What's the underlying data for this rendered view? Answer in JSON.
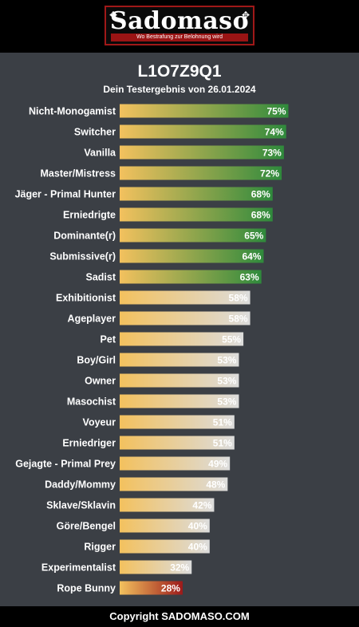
{
  "logo": {
    "wordmark": "Sadomaso",
    "tagline": "Wo Bestrafung zur Belohnung wird"
  },
  "colors": {
    "bar_start": "#f3c15e",
    "top_tier_end": "#2f8a3c",
    "mid_tier_end": "#dcdcdc",
    "low_tier_end": "#9c1a1a"
  },
  "chart_data": {
    "type": "bar",
    "orientation": "horizontal",
    "title": "L1O7Z9Q1",
    "subtitle": "Dein Testergebnis von 26.01.2024",
    "xlim": [
      0,
      100
    ],
    "grid": false,
    "legend": "none",
    "categories": [
      "Nicht-Monogamist",
      "Switcher",
      "Vanilla",
      "Master/Mistress",
      "Jäger - Primal Hunter",
      "Erniedrigte",
      "Dominante(r)",
      "Submissive(r)",
      "Sadist",
      "Exhibitionist",
      "Ageplayer",
      "Pet",
      "Boy/Girl",
      "Owner",
      "Masochist",
      "Voyeur",
      "Erniedriger",
      "Gejagte - Primal Prey",
      "Daddy/Mommy",
      "Sklave/Sklavin",
      "Göre/Bengel",
      "Rigger",
      "Experimentalist",
      "Rope Bunny"
    ],
    "values": [
      75,
      74,
      73,
      72,
      68,
      68,
      65,
      64,
      63,
      58,
      58,
      55,
      53,
      53,
      53,
      51,
      51,
      49,
      48,
      42,
      40,
      40,
      32,
      28
    ],
    "labels": [
      "75%",
      "74%",
      "73%",
      "72%",
      "68%",
      "68%",
      "65%",
      "64%",
      "63%",
      "58%",
      "58%",
      "55%",
      "53%",
      "53%",
      "53%",
      "51%",
      "51%",
      "49%",
      "48%",
      "42%",
      "40%",
      "40%",
      "32%",
      "28%"
    ]
  },
  "footer": {
    "copyright": "Copyright SADOMASO.COM"
  }
}
